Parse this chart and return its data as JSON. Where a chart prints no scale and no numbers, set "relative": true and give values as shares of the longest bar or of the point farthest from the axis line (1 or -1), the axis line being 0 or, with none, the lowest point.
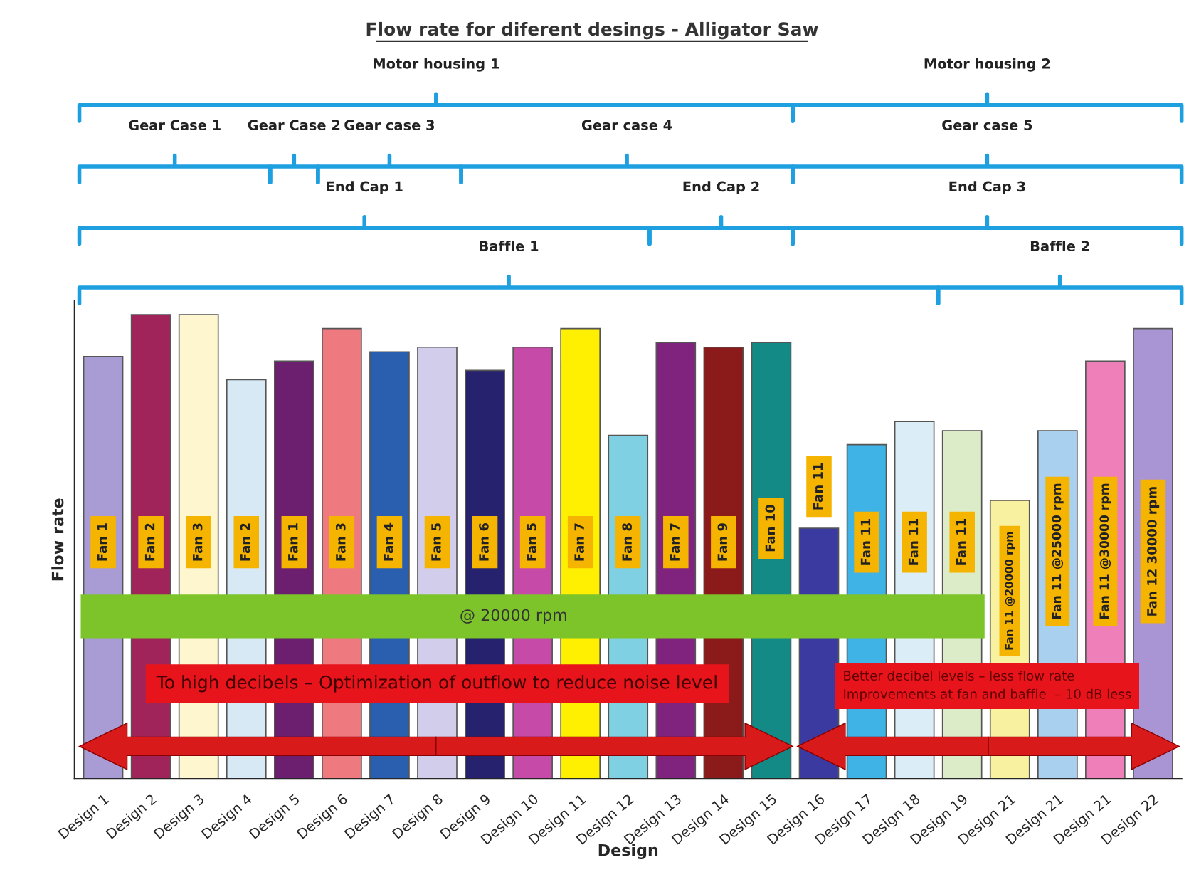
{
  "chart_data": {
    "type": "bar",
    "title": "Flow rate for diferent desings - Alligator Saw",
    "xlabel": "Design",
    "ylabel": "Flow rate",
    "relative": true,
    "grid": false,
    "legend": false,
    "categories": [
      "Design 1",
      "Design 2",
      "Design 3",
      "Design 4",
      "Design 5",
      "Design 6",
      "Design 7",
      "Design 8",
      "Design 9",
      "Design 10",
      "Design 11",
      "Design 12",
      "Design 13",
      "Design 14",
      "Design 15",
      "Design 16",
      "Design 17",
      "Design 18",
      "Design 19",
      "Design 21",
      "Design 21",
      "Design 21",
      "Design 22"
    ],
    "values": [
      0.91,
      1.0,
      1.0,
      0.86,
      0.9,
      0.97,
      0.92,
      0.93,
      0.88,
      0.93,
      0.97,
      0.74,
      0.94,
      0.93,
      0.94,
      0.54,
      0.72,
      0.77,
      0.75,
      0.6,
      0.75,
      0.9,
      0.97
    ],
    "colors": [
      "#a99bd4",
      "#a0245a",
      "#fdf6cf",
      "#d6e9f5",
      "#6b1f6e",
      "#ee7a80",
      "#2a5fb0",
      "#d2cdea",
      "#27226e",
      "#c64aa8",
      "#ffef00",
      "#7fd0e2",
      "#80237f",
      "#8b1a1a",
      "#138a86",
      "#3a3aa0",
      "#3fb3e6",
      "#dbeef7",
      "#dcecc8",
      "#f8f2a0",
      "#a9d0ef",
      "#ef7fb9",
      "#a995d4"
    ],
    "annotations": [
      "Motor housing 1",
      "Motor housing 2",
      "Gear Case 1",
      "Gear Case 2",
      "Gear case 3",
      "Gear case 4",
      "Gear case 5",
      "End Cap 1",
      "End Cap 2",
      "End Cap 3",
      "Baffle 1",
      "Baffle 2",
      "@ 20000 rpm",
      "To high decibels – Optimization of outflow to reduce noise level",
      "Better decibel levels – less flow rate\nImprovements at fan and baffle  – 10 dB less",
      {
        "text": "Fan 1",
        "x": "Design 1",
        "y": 0.51
      },
      {
        "text": "Fan 2",
        "x": "Design 2",
        "y": 0.51
      },
      {
        "text": "Fan 3",
        "x": "Design 3",
        "y": 0.51
      },
      {
        "text": "Fan 2",
        "x": "Design 4",
        "y": 0.51
      },
      {
        "text": "Fan 1",
        "x": "Design 5",
        "y": 0.51
      },
      {
        "text": "Fan 3",
        "x": "Design 6",
        "y": 0.51
      },
      {
        "text": "Fan 4",
        "x": "Design 7",
        "y": 0.51
      },
      {
        "text": "Fan 5",
        "x": "Design 8",
        "y": 0.51
      },
      {
        "text": "Fan 6",
        "x": "Design 9",
        "y": 0.51
      },
      {
        "text": "Fan 5",
        "x": "Design 10",
        "y": 0.51
      },
      {
        "text": "Fan 7",
        "x": "Design 11",
        "y": 0.51
      },
      {
        "text": "Fan 8",
        "x": "Design 12",
        "y": 0.51
      },
      {
        "text": "Fan 7",
        "x": "Design 13",
        "y": 0.51
      },
      {
        "text": "Fan 9",
        "x": "Design 14",
        "y": 0.51
      },
      {
        "text": "Fan 10",
        "x": "Design 15",
        "y": 0.54
      },
      {
        "text": "Fan 11",
        "x": "Design 16",
        "y": 0.63
      },
      {
        "text": "Fan 11",
        "x": "Design 17",
        "y": 0.51
      },
      {
        "text": "Fan 11",
        "x": "Design 18",
        "y": 0.51
      },
      {
        "text": "Fan 11",
        "x": "Design 19",
        "y": 0.51
      },
      "Fan 11 @20000 rpm",
      "Fan 11 @25000 rpm",
      "Fan 11 @30000 rpm",
      {
        "text": "Fan 12 30000 rpm",
        "x": "Design 22",
        "y": 0.49
      }
    ]
  }
}
